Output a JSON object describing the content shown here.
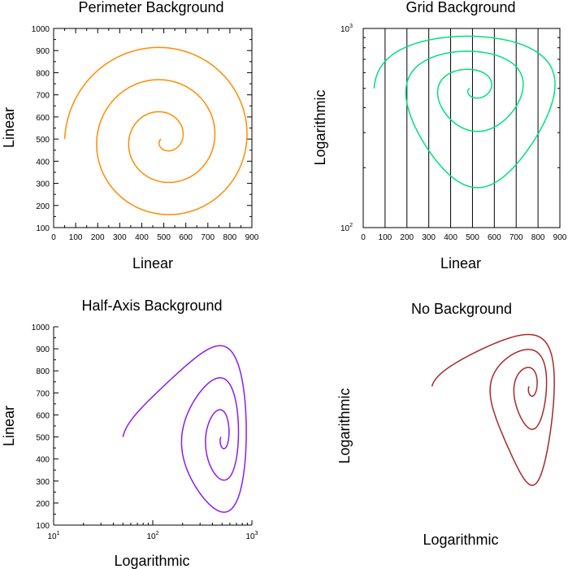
{
  "chart_data": [
    {
      "type": "line",
      "title": "Perimeter Background",
      "xlabel": "Linear",
      "ylabel": "Linear",
      "xscale": "linear",
      "yscale": "linear",
      "xlim": [
        0,
        900
      ],
      "ylim": [
        100,
        1000
      ],
      "xticks": [
        0,
        100,
        200,
        300,
        400,
        500,
        600,
        700,
        800,
        900
      ],
      "yticks": [
        100,
        200,
        300,
        400,
        500,
        600,
        700,
        800,
        900,
        1000
      ],
      "background": "perimeter",
      "grid": false,
      "color": "#ff8c00",
      "spiral": {
        "center_x": 500,
        "center_y": 500,
        "start_x": 50,
        "start_y": 500,
        "turns": 3
      }
    },
    {
      "type": "line",
      "title": "Grid Background",
      "xlabel": "Linear",
      "ylabel": "Logarithmic",
      "xscale": "linear",
      "yscale": "log",
      "xlim": [
        0,
        900
      ],
      "ylim": [
        100,
        1000
      ],
      "xticks": [
        0,
        100,
        200,
        300,
        400,
        500,
        600,
        700,
        800,
        900
      ],
      "yticks": [
        100,
        1000
      ],
      "background": "grid",
      "grid": true,
      "color": "#00e07a",
      "spiral": {
        "center_x": 500,
        "center_y": 500,
        "start_x": 50,
        "start_y": 500,
        "turns": 3
      }
    },
    {
      "type": "line",
      "title": "Half-Axis Background",
      "xlabel": "Logarithmic",
      "ylabel": "Linear",
      "xscale": "log",
      "yscale": "linear",
      "xlim": [
        10,
        1000
      ],
      "ylim": [
        100,
        1000
      ],
      "xticks": [
        10,
        100,
        1000
      ],
      "yticks": [
        100,
        200,
        300,
        400,
        500,
        600,
        700,
        800,
        900,
        1000
      ],
      "background": "half-axis",
      "grid": false,
      "color": "#8a1cf0",
      "spiral": {
        "center_x": 500,
        "center_y": 500,
        "start_x": 50,
        "start_y": 500,
        "turns": 3
      }
    },
    {
      "type": "line",
      "title": "No Background",
      "xlabel": "Logarithmic",
      "ylabel": "Logarithmic",
      "xscale": "log",
      "yscale": "log",
      "xlim": [
        10,
        1000
      ],
      "ylim": [
        100,
        1000
      ],
      "xticks": [],
      "yticks": [],
      "background": "none",
      "grid": false,
      "color": "#a52a2a",
      "spiral": {
        "center_x": 500,
        "center_y": 500,
        "start_x": 50,
        "start_y": 500,
        "turns": 3
      }
    }
  ]
}
